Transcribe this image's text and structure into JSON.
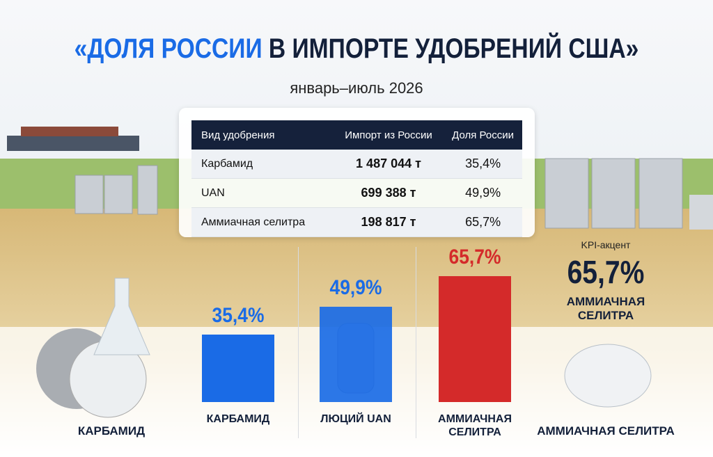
{
  "header": {
    "title_accent": "«ДОЛЯ РОССИИ",
    "title_rest": "В ИМПОРТЕ УДОБРЕНИЙ США»",
    "subtitle": "январь–июль 2026"
  },
  "table": {
    "columns": [
      "Вид удобрения",
      "Импорт из России",
      "Доля России"
    ],
    "rows": [
      [
        "Карбамид",
        "1 487 044 т",
        "35,4%"
      ],
      [
        "UAN",
        "699 388 т",
        "49,9%"
      ],
      [
        "Аммиачная селитра",
        "198 817 т",
        "65,7%"
      ]
    ]
  },
  "chart_data": {
    "type": "bar",
    "categories": [
      "КАРБАМИД",
      "ЛЮЦИЙ UAN",
      "АММИАЧНАЯ СЕЛИТРА"
    ],
    "values": [
      35.4,
      49.9,
      65.7
    ],
    "value_labels": [
      "35,4%",
      "49,9%",
      "65,7%"
    ],
    "colors": [
      "#1a6be6",
      "#1a6be6",
      "#d42a2a"
    ]
  },
  "kpi": {
    "label": "KPI-акцент",
    "value": "65,7%",
    "caption": "АММИАЧНАЯ СЕЛИТРА"
  },
  "products": [
    "КАРБАМИД",
    "АММИАЧНАЯ СЕЛИТРА"
  ]
}
